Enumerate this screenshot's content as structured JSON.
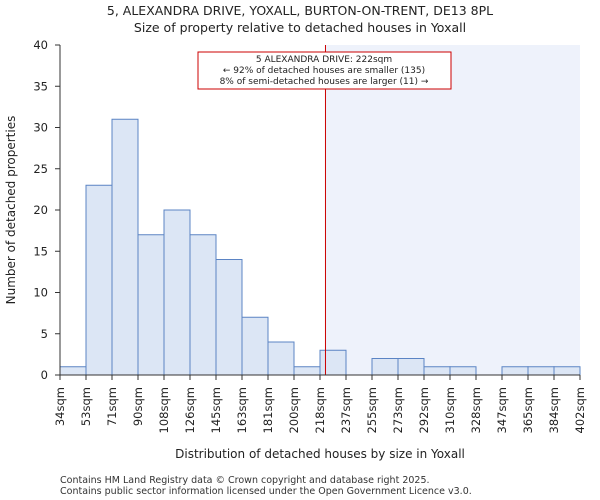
{
  "chart_data": {
    "type": "bar",
    "title": "5, ALEXANDRA DRIVE, YOXALL, BURTON-ON-TRENT, DE13 8PL",
    "subtitle": "Size of property relative to detached houses in Yoxall",
    "xlabel": "Distribution of detached houses by size in Yoxall",
    "ylabel": "Number of detached properties",
    "ylim": [
      0,
      40
    ],
    "yticks": [
      0,
      5,
      10,
      15,
      20,
      25,
      30,
      35,
      40
    ],
    "bin_edges": [
      34,
      53,
      71,
      90,
      108,
      126,
      145,
      163,
      181,
      200,
      218,
      237,
      255,
      273,
      292,
      310,
      328,
      347,
      365,
      384,
      402
    ],
    "tick_labels": [
      "34sqm",
      "53sqm",
      "71sqm",
      "90sqm",
      "108sqm",
      "126sqm",
      "145sqm",
      "163sqm",
      "181sqm",
      "200sqm",
      "218sqm",
      "237sqm",
      "255sqm",
      "273sqm",
      "292sqm",
      "310sqm",
      "328sqm",
      "347sqm",
      "365sqm",
      "384sqm",
      "402sqm"
    ],
    "values": [
      1,
      23,
      31,
      17,
      20,
      17,
      14,
      7,
      4,
      1,
      3,
      0,
      2,
      2,
      1,
      1,
      0,
      1,
      1,
      1
    ],
    "property_size": 222,
    "annotation": {
      "line1": "5 ALEXANDRA DRIVE: 222sqm",
      "line2": "← 92% of detached houses are smaller (135)",
      "line3": "8% of semi-detached houses are larger (11) →"
    },
    "colors": {
      "bar_fill": "#dce6f5",
      "bar_stroke": "#5b84c4",
      "shade": "#eef2fb",
      "marker": "#cc0000",
      "axis": "#333333"
    }
  },
  "footer": {
    "line1": "Contains HM Land Registry data © Crown copyright and database right 2025.",
    "line2": "Contains public sector information licensed under the Open Government Licence v3.0."
  }
}
